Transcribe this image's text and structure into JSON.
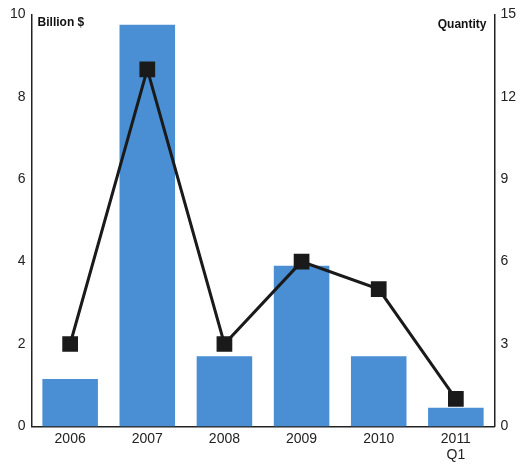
{
  "chart_data": {
    "type": "bar",
    "categories": [
      "2006",
      "2007",
      "2008",
      "2009",
      "2010",
      "2011 Q1"
    ],
    "y_label": "Billion $",
    "y2_label": "Quantity",
    "ylim": [
      0,
      10
    ],
    "yticks": [
      0,
      2,
      4,
      6,
      8,
      10
    ],
    "y2lim": [
      0,
      15
    ],
    "y2ticks": [
      0,
      3,
      6,
      9,
      12,
      15
    ],
    "grid": false,
    "series": [
      {
        "type": "bar",
        "color": "#4a8fd4",
        "values": [
          1.15,
          9.75,
          1.7,
          3.9,
          1.7,
          0.45
        ]
      },
      {
        "type": "line",
        "color": "#1a1a1a",
        "marker": "square",
        "axis": "y2",
        "values": [
          3,
          13,
          3,
          6,
          5,
          1
        ]
      }
    ]
  }
}
